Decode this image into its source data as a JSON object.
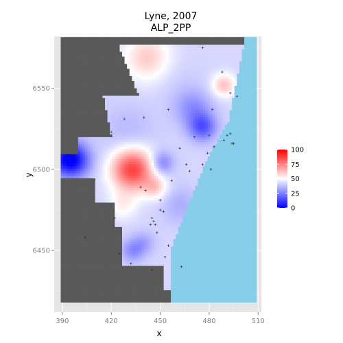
{
  "chart_data": {
    "type": "heatmap",
    "title": "Lyne, 2007",
    "subtitle": "ALP_2PP",
    "xlabel": "x",
    "ylabel": "y",
    "xlim": [
      385,
      512
    ],
    "ylim": [
      6412,
      6582
    ],
    "x_ticks": [
      "390",
      "420",
      "450",
      "480",
      "510"
    ],
    "y_ticks": [
      "6450",
      "6500",
      "6550"
    ],
    "legend": {
      "position": "right",
      "scale": [
        0,
        100
      ],
      "breaks": [
        "100",
        "75",
        "50",
        "25",
        "0"
      ],
      "low_color": "#0000ff",
      "mid_color": "#ffffff",
      "high_color": "#ff0000",
      "midpoint": 50
    },
    "colors": {
      "panel_background": "#e5e5e5",
      "grid": "#ffffff",
      "land_outside": "#595959",
      "sea": "#87ceeb",
      "booth_marker": "#333333"
    },
    "grid": true,
    "surface_anchors": [
      {
        "x": 433,
        "y": 6500,
        "value": 88,
        "spread": 9
      },
      {
        "x": 427,
        "y": 6478,
        "value": 52,
        "spread": 6
      },
      {
        "x": 447,
        "y": 6489,
        "value": 58,
        "spread": 5
      },
      {
        "x": 442,
        "y": 6569,
        "value": 60,
        "spread": 10
      },
      {
        "x": 489,
        "y": 6552,
        "value": 62,
        "spread": 5
      },
      {
        "x": 476,
        "y": 6526,
        "value": 18,
        "spread": 6
      },
      {
        "x": 470,
        "y": 6538,
        "value": 28,
        "spread": 8
      },
      {
        "x": 451,
        "y": 6504,
        "value": 24,
        "spread": 5
      },
      {
        "x": 433,
        "y": 6450,
        "value": 28,
        "spread": 5
      },
      {
        "x": 440,
        "y": 6455,
        "value": 33,
        "spread": 5
      },
      {
        "x": 392,
        "y": 6507,
        "value": 12,
        "spread": 8
      },
      {
        "x": 398,
        "y": 6505,
        "value": 22,
        "spread": 7
      },
      {
        "x": 430,
        "y": 6523,
        "value": 36,
        "spread": 12
      },
      {
        "x": 462,
        "y": 6478,
        "value": 34,
        "spread": 8
      },
      {
        "x": 460,
        "y": 6555,
        "value": 40,
        "spread": 10
      }
    ],
    "base_value": 42,
    "booths": [
      [
        493,
        6522
      ],
      [
        491,
        6521
      ],
      [
        489,
        6518
      ],
      [
        494,
        6516
      ],
      [
        480,
        6521
      ],
      [
        483,
        6514
      ],
      [
        471,
        6520
      ],
      [
        462,
        6513
      ],
      [
        468,
        6499
      ],
      [
        479,
        6510
      ],
      [
        481,
        6500
      ],
      [
        476,
        6503
      ],
      [
        466,
        6503
      ],
      [
        445,
        6470
      ],
      [
        446,
        6468
      ],
      [
        447,
        6466
      ],
      [
        444,
        6466
      ],
      [
        452,
        6474
      ],
      [
        448,
        6461
      ],
      [
        450,
        6475
      ],
      [
        450,
        6481
      ],
      [
        441,
        6487
      ],
      [
        438,
        6489
      ],
      [
        422,
        6470
      ],
      [
        420,
        6523
      ],
      [
        428,
        6531
      ],
      [
        440,
        6532
      ],
      [
        455,
        6537
      ],
      [
        482,
        6537
      ],
      [
        495,
        6516
      ],
      [
        404,
        6458
      ],
      [
        455,
        6453
      ],
      [
        453,
        6446
      ],
      [
        463,
        6440
      ],
      [
        445,
        6438
      ],
      [
        476,
        6575
      ],
      [
        488,
        6560
      ],
      [
        493,
        6547
      ],
      [
        497,
        6545
      ],
      [
        425,
        6448
      ],
      [
        432,
        6442
      ],
      [
        457,
        6493
      ]
    ]
  }
}
